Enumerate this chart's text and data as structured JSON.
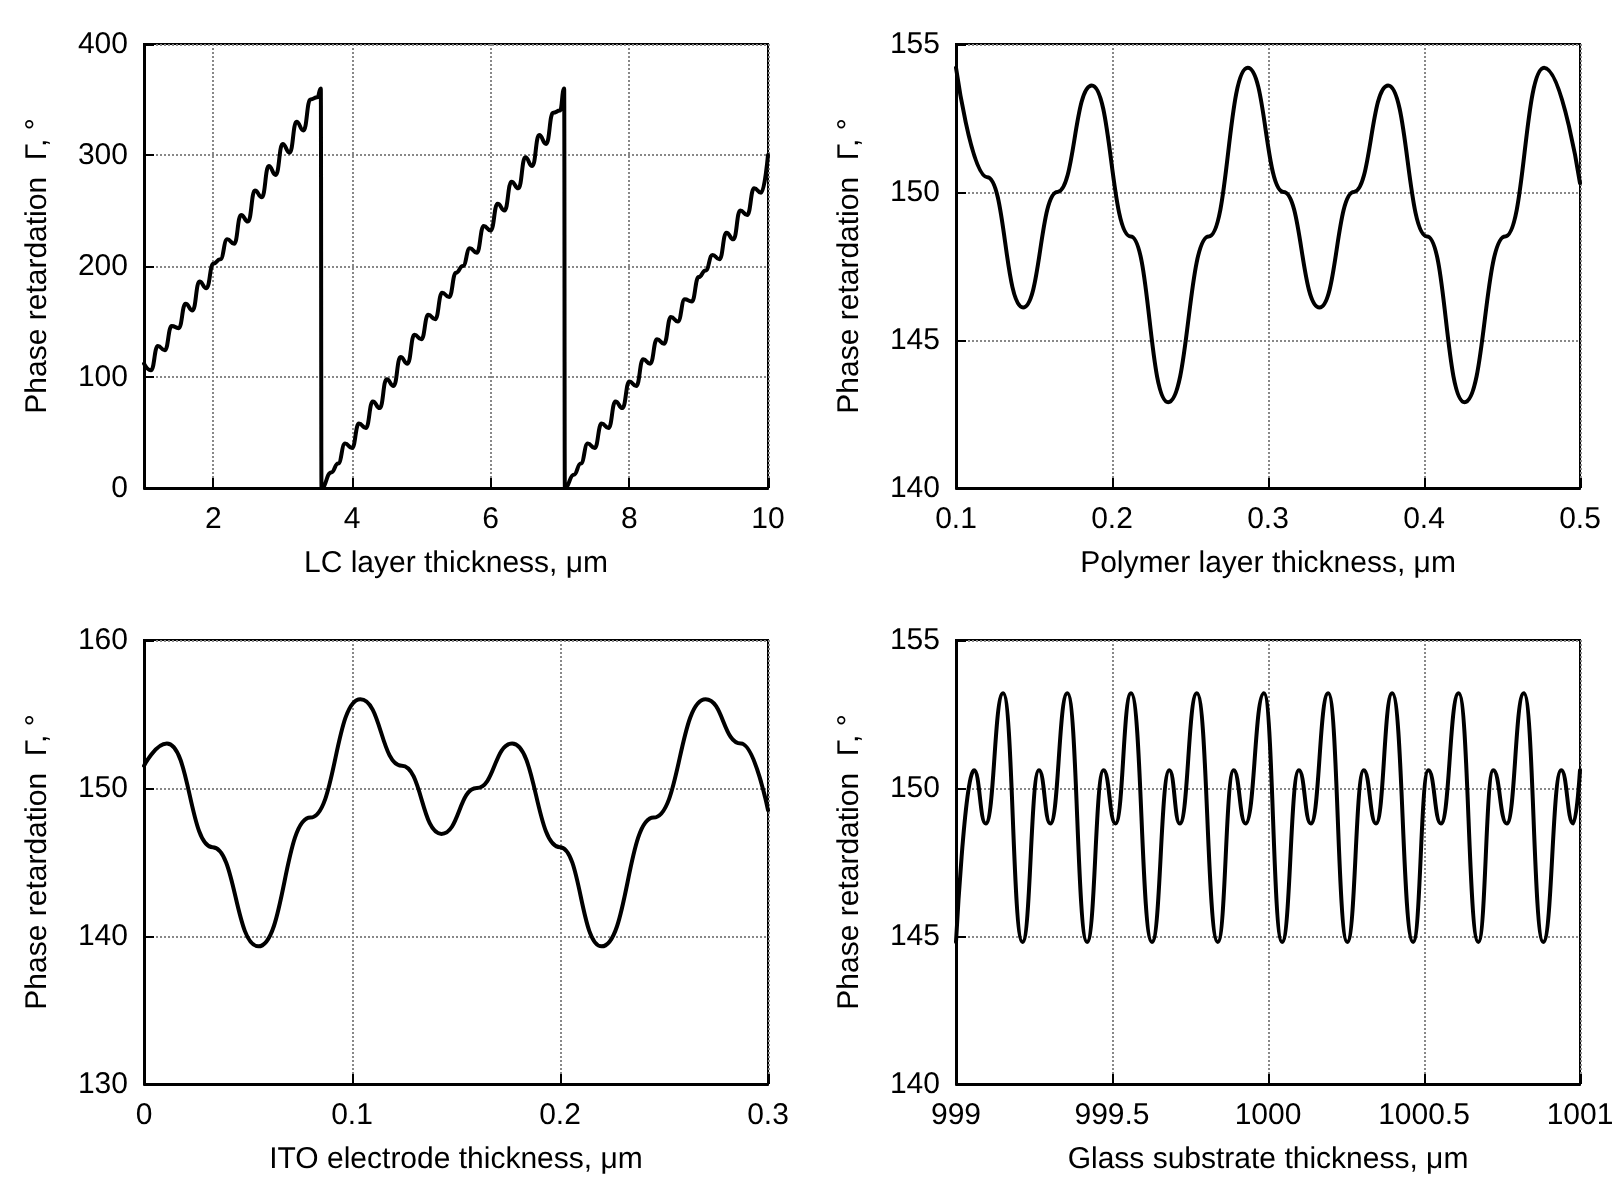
{
  "chart_data": [
    {
      "type": "line",
      "xlabel": "LC layer thickness, μm",
      "ylabel": "Phase retardation  Γ, °",
      "xlim": [
        1,
        10
      ],
      "ylim": [
        0,
        400
      ],
      "xticks": [
        2,
        4,
        6,
        8,
        10
      ],
      "yticks": [
        0,
        100,
        200,
        300,
        400
      ],
      "grid": true,
      "marker": "none",
      "line_style": "solid",
      "series": [
        {
          "color": "#000000",
          "x": [
            1.0,
            1.1,
            1.2,
            1.3,
            1.4,
            1.5,
            1.6,
            1.7,
            1.8,
            1.9,
            2.0,
            2.1,
            2.2,
            2.3,
            2.4,
            2.5,
            2.6,
            2.7,
            2.8,
            2.9,
            3.0,
            3.1,
            3.2,
            3.3,
            3.4,
            3.5,
            3.55,
            3.56,
            3.7,
            3.8,
            3.9,
            4.0,
            4.1,
            4.2,
            4.3,
            4.4,
            4.5,
            4.6,
            4.7,
            4.8,
            4.9,
            5.0,
            5.1,
            5.2,
            5.3,
            5.4,
            5.5,
            5.6,
            5.7,
            5.8,
            5.9,
            6.0,
            6.1,
            6.2,
            6.3,
            6.4,
            6.5,
            6.6,
            6.7,
            6.8,
            6.9,
            7.0,
            7.06,
            7.07,
            7.2,
            7.3,
            7.4,
            7.5,
            7.6,
            7.7,
            7.8,
            7.9,
            8.0,
            8.1,
            8.2,
            8.3,
            8.4,
            8.5,
            8.6,
            8.7,
            8.8,
            8.9,
            9.0,
            9.1,
            9.2,
            9.3,
            9.4,
            9.5,
            9.6,
            9.7,
            9.8,
            9.9,
            10.0
          ],
          "values": [
            112,
            106,
            128,
            124,
            146,
            144,
            166,
            160,
            186,
            180,
            202,
            206,
            224,
            220,
            246,
            240,
            268,
            262,
            290,
            282,
            310,
            302,
            330,
            322,
            350,
            352,
            360,
            0,
            14,
            22,
            40,
            36,
            58,
            54,
            78,
            72,
            98,
            92,
            118,
            112,
            138,
            134,
            156,
            152,
            176,
            172,
            194,
            200,
            216,
            212,
            236,
            232,
            256,
            250,
            276,
            270,
            298,
            290,
            318,
            310,
            338,
            340,
            360,
            0,
            12,
            22,
            40,
            36,
            58,
            54,
            78,
            72,
            96,
            92,
            116,
            112,
            134,
            130,
            154,
            150,
            170,
            168,
            190,
            196,
            210,
            206,
            230,
            224,
            250,
            246,
            270,
            266,
            300
          ]
        }
      ]
    },
    {
      "type": "line",
      "xlabel": "Polymer layer thickness, μm",
      "ylabel": "Phase retardation  Γ, °",
      "xlim": [
        0.1,
        0.5
      ],
      "ylim": [
        140,
        155
      ],
      "xticks": [
        0.1,
        0.2,
        0.3,
        0.4,
        0.5
      ],
      "yticks": [
        140,
        145,
        150,
        155
      ],
      "grid": true,
      "marker": "none",
      "line_style": "solid",
      "series": [
        {
          "color": "#000000",
          "x": [
            0.1,
            0.12,
            0.143,
            0.165,
            0.187,
            0.212,
            0.236,
            0.262,
            0.287,
            0.31,
            0.333,
            0.355,
            0.377,
            0.402,
            0.426,
            0.452,
            0.477,
            0.5
          ],
          "values": [
            154.2,
            150.5,
            146.1,
            150,
            153.6,
            148.5,
            142.9,
            148.5,
            154.2,
            150,
            146.1,
            150,
            153.6,
            148.5,
            142.9,
            148.5,
            154.2,
            150.3
          ]
        }
      ]
    },
    {
      "type": "line",
      "xlabel": "ITO electrode thickness, μm",
      "ylabel": "Phase retardation  Γ, °",
      "xlim": [
        0,
        0.3
      ],
      "ylim": [
        130,
        160
      ],
      "xticks": [
        0,
        0.1,
        0.2,
        0.3
      ],
      "yticks": [
        130,
        140,
        150,
        160
      ],
      "grid": true,
      "marker": "none",
      "line_style": "solid",
      "series": [
        {
          "color": "#000000",
          "x": [
            0,
            0.011,
            0.033,
            0.055,
            0.08,
            0.104,
            0.124,
            0.143,
            0.16,
            0.177,
            0.2,
            0.22,
            0.245,
            0.27,
            0.287,
            0.3
          ],
          "values": [
            151.5,
            153,
            146,
            139.3,
            148,
            156,
            151.5,
            146.9,
            150,
            153,
            146,
            139.3,
            148,
            156,
            153,
            148.5
          ]
        }
      ]
    },
    {
      "type": "line",
      "xlabel": "Glass substrate thickness, μm",
      "ylabel": "Phase retardation  Γ, °",
      "xlim": [
        999,
        1001
      ],
      "ylim": [
        140,
        155
      ],
      "xticks": [
        999,
        999.5,
        1000,
        1000.5,
        1001
      ],
      "yticks": [
        140,
        145,
        150,
        155
      ],
      "grid": true,
      "marker": "none",
      "line_style": "solid",
      "series": [
        {
          "color": "#000000",
          "x": [
            999,
            999.058,
            999.095,
            999.151,
            999.213,
            999.266,
            999.302,
            999.357,
            999.42,
            999.473,
            999.511,
            999.561,
            999.628,
            999.684,
            999.717,
            999.772,
            999.839,
            999.89,
            999.928,
            999.987,
            1000.045,
            1000.099,
            1000.137,
            1000.193,
            1000.254,
            1000.307,
            1000.346,
            1000.398,
            1000.465,
            1000.514,
            1000.554,
            1000.611,
            1000.674,
            1000.722,
            1000.765,
            1000.82,
            1000.882,
            1000.94,
            1000.978,
            1001
          ],
          "values": [
            144.8,
            150.6,
            148.8,
            153.2,
            144.8,
            150.6,
            148.8,
            153.2,
            144.8,
            150.6,
            148.8,
            153.2,
            144.8,
            150.6,
            148.8,
            153.2,
            144.8,
            150.6,
            148.8,
            153.2,
            144.8,
            150.6,
            148.8,
            153.2,
            144.8,
            150.6,
            148.8,
            153.2,
            144.8,
            150.6,
            148.8,
            153.2,
            144.8,
            150.6,
            148.8,
            153.2,
            144.8,
            150.6,
            148.8,
            150.6
          ]
        }
      ]
    }
  ]
}
